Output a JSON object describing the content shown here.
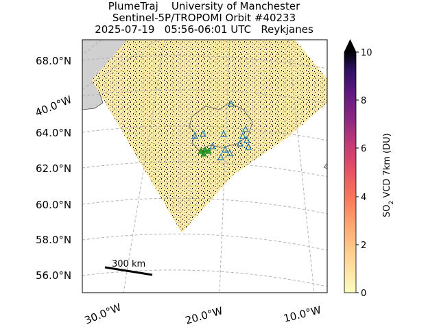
{
  "title": {
    "line1": "PlumeTraj    University of Manchester",
    "line2": "Sentinel-5P/TROPOMI Orbit #40233",
    "line3": "2025-07-19   05:56-06:01 UTC   Reykjanes"
  },
  "map": {
    "lat_ticks": [
      "68.0°N",
      "64.0°N",
      "62.0°N",
      "60.0°N",
      "58.0°N",
      "56.0°N"
    ],
    "lon_ticks": [
      "40.0°W",
      "30.0°W",
      "20.0°W",
      "10.0°W"
    ],
    "scalebar_label": "300 km",
    "background_land": "#d0d0d0",
    "grid_style": "dashed grey"
  },
  "colorbar": {
    "label": "SO",
    "label_sub": "2",
    "label_rest": " VCD 7km (DU)",
    "ticks": [
      "0",
      "2",
      "4",
      "6",
      "8",
      "10"
    ],
    "colormap": "magma_r",
    "extend": "max"
  },
  "chart_data": {
    "type": "heatmap",
    "title": "PlumeTraj    University of Manchester / Sentinel-5P/TROPOMI Orbit #40233 / 2025-07-19   05:56-06:01 UTC   Reykjanes",
    "ylabel": "SO2 VCD 7km (DU)",
    "value_range": [
      0,
      10
    ],
    "lat_range": [
      55,
      69
    ],
    "lon_range": [
      -32,
      -10
    ],
    "markers": {
      "volcano_triangles": "blue outline",
      "source_triangles": "green filled"
    }
  }
}
